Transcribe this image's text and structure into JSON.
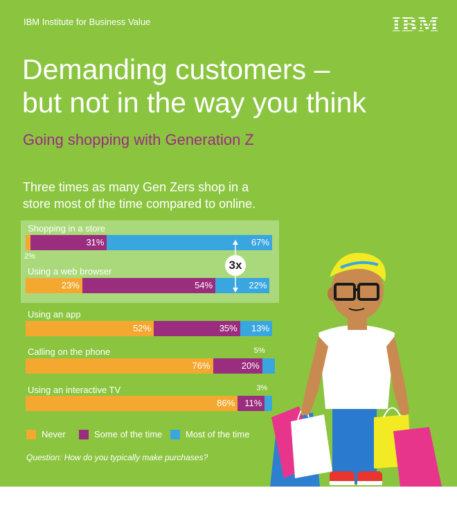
{
  "header": {
    "org": "IBM Institute for Business Value",
    "logo": "IBM"
  },
  "title_line1": "Demanding customers –",
  "title_line2": "but not in the way you think",
  "subtitle": "Going shopping with Generation Z",
  "lead_line1": "Three times as many Gen Zers shop in a",
  "lead_line2": "store most of the time compared to online.",
  "badge": "3x",
  "question": "Question: How do you typically make purchases?",
  "colors": {
    "never": "#f5a830",
    "some": "#9b2d7f",
    "most": "#3aa6e0",
    "panel": "#8bc540",
    "highlight": "#a9d97a"
  },
  "chart_data": {
    "type": "bar",
    "orientation": "horizontal",
    "stacked": true,
    "unit": "%",
    "categories": [
      "Shopping in a store",
      "Using a web browser",
      "Using an app",
      "Calling on the phone",
      "Using an interactive TV"
    ],
    "series": [
      {
        "name": "Never",
        "values": [
          2,
          23,
          52,
          76,
          86
        ]
      },
      {
        "name": "Some of the time",
        "values": [
          31,
          54,
          35,
          20,
          11
        ]
      },
      {
        "name": "Most of the time",
        "values": [
          67,
          22,
          13,
          5,
          3
        ]
      }
    ],
    "value_labels": [
      [
        "2%",
        "31%",
        "67%"
      ],
      [
        "23%",
        "54%",
        "22%"
      ],
      [
        "52%",
        "35%",
        "13%"
      ],
      [
        "76%",
        "20%",
        "5%"
      ],
      [
        "86%",
        "11%",
        "3%"
      ]
    ],
    "legend_position": "bottom-left",
    "xlim": [
      0,
      100
    ]
  },
  "legend": [
    {
      "label": "Never",
      "color": "#f5a830"
    },
    {
      "label": "Some of the time",
      "color": "#9b2d7f"
    },
    {
      "label": "Most of the time",
      "color": "#3aa6e0"
    }
  ]
}
